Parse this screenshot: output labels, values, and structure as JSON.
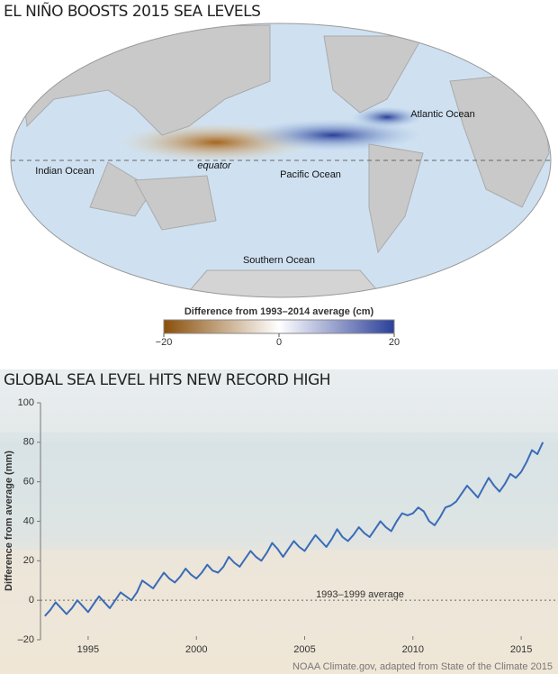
{
  "chart_data": [
    {
      "type": "map",
      "title": "EL NIÑO BOOSTS 2015 SEA LEVELS",
      "labels": [
        "Atlantic Ocean",
        "Indian Ocean",
        "equator",
        "Pacific Ocean",
        "Southern Ocean"
      ],
      "colorbar": {
        "label": "Difference from 1993–2014 average (cm)",
        "lim": [
          -20,
          20
        ],
        "ticks": [
          {
            "value": -20,
            "label": "−20"
          },
          0,
          20
        ],
        "colors": [
          "#8a4f0a",
          "#ffffff",
          "#2b3f99"
        ]
      }
    },
    {
      "type": "line",
      "title": "GLOBAL SEA LEVEL HITS NEW RECORD HIGH",
      "ylabel": "Difference from average (mm)",
      "annotation": "1993–1999 average",
      "source": "NOAA Climate.gov, adapted from State of the Climate 2015",
      "color": "#3a6bb8",
      "xlim": [
        1992.8,
        2016.7
      ],
      "xticks": [
        1995,
        2000,
        2005,
        2010,
        2015
      ],
      "ylim": [
        -20,
        100
      ],
      "yticks": [
        {
          "value": -20,
          "label": "–20"
        },
        0,
        20,
        40,
        60,
        80,
        100
      ],
      "x": [
        1993,
        1993.25,
        1993.5,
        1993.75,
        1994,
        1994.25,
        1994.5,
        1994.75,
        1995,
        1995.25,
        1995.5,
        1995.75,
        1996,
        1996.25,
        1996.5,
        1996.75,
        1997,
        1997.25,
        1997.5,
        1997.75,
        1998,
        1998.25,
        1998.5,
        1998.75,
        1999,
        1999.25,
        1999.5,
        1999.75,
        2000,
        2000.25,
        2000.5,
        2000.75,
        2001,
        2001.25,
        2001.5,
        2001.75,
        2002,
        2002.25,
        2002.5,
        2002.75,
        2003,
        2003.25,
        2003.5,
        2003.75,
        2004,
        2004.25,
        2004.5,
        2004.75,
        2005,
        2005.25,
        2005.5,
        2005.75,
        2006,
        2006.25,
        2006.5,
        2006.75,
        2007,
        2007.25,
        2007.5,
        2007.75,
        2008,
        2008.25,
        2008.5,
        2008.75,
        2009,
        2009.25,
        2009.5,
        2009.75,
        2010,
        2010.25,
        2010.5,
        2010.75,
        2011,
        2011.25,
        2011.5,
        2011.75,
        2012,
        2012.25,
        2012.5,
        2012.75,
        2013,
        2013.25,
        2013.5,
        2013.75,
        2014,
        2014.25,
        2014.5,
        2014.75,
        2015,
        2015.25,
        2015.5,
        2015.75,
        2016
      ],
      "values": [
        -8,
        -5,
        -1,
        -4,
        -7,
        -4,
        0,
        -3,
        -6,
        -2,
        2,
        -1,
        -4,
        0,
        4,
        2,
        0,
        4,
        10,
        8,
        6,
        10,
        14,
        11,
        9,
        12,
        16,
        13,
        11,
        14,
        18,
        15,
        14,
        17,
        22,
        19,
        17,
        21,
        25,
        22,
        20,
        24,
        29,
        26,
        22,
        26,
        30,
        27,
        25,
        29,
        33,
        30,
        27,
        31,
        36,
        32,
        30,
        33,
        37,
        34,
        32,
        36,
        40,
        37,
        35,
        40,
        44,
        43,
        44,
        47,
        45,
        40,
        38,
        42,
        47,
        48,
        50,
        54,
        58,
        55,
        52,
        57,
        62,
        58,
        55,
        59,
        64,
        62,
        65,
        70,
        76,
        74,
        80
      ]
    }
  ]
}
